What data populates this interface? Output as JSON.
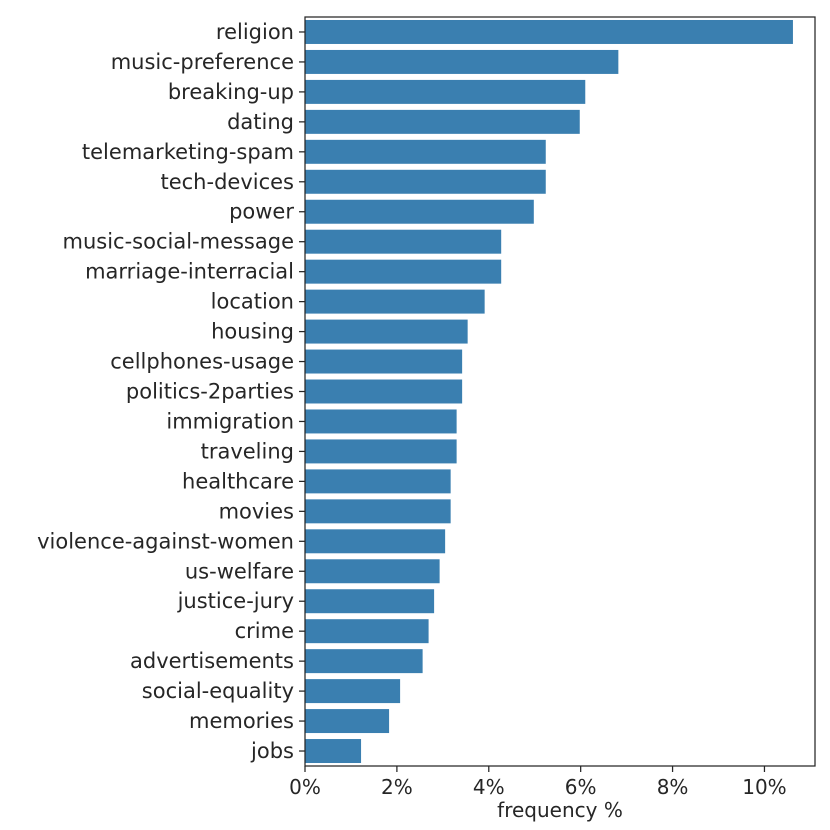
{
  "chart_data": {
    "type": "bar",
    "orientation": "horizontal",
    "title": "",
    "xlabel": "frequency %",
    "ylabel": "",
    "xlim": [
      0,
      11.1
    ],
    "ticks": [
      0,
      2,
      4,
      6,
      8,
      10
    ],
    "tick_labels": [
      "0%",
      "2%",
      "4%",
      "6%",
      "8%",
      "10%"
    ],
    "bar_color": "#3a7fb0",
    "grid": false,
    "categories": [
      "religion",
      "music-preference",
      "breaking-up",
      "dating",
      "telemarketing-spam",
      "tech-devices",
      "power",
      "music-social-message",
      "marriage-interracial",
      "location",
      "housing",
      "cellphones-usage",
      "politics-2parties",
      "immigration",
      "traveling",
      "healthcare",
      "movies",
      "violence-against-women",
      "us-welfare",
      "justice-jury",
      "crime",
      "advertisements",
      "social-equality",
      "memories",
      "jobs"
    ],
    "values": [
      10.62,
      6.82,
      6.1,
      5.98,
      5.24,
      5.24,
      4.98,
      4.27,
      4.27,
      3.91,
      3.54,
      3.42,
      3.42,
      3.3,
      3.3,
      3.17,
      3.17,
      3.05,
      2.93,
      2.81,
      2.69,
      2.56,
      2.07,
      1.83,
      1.22
    ]
  }
}
